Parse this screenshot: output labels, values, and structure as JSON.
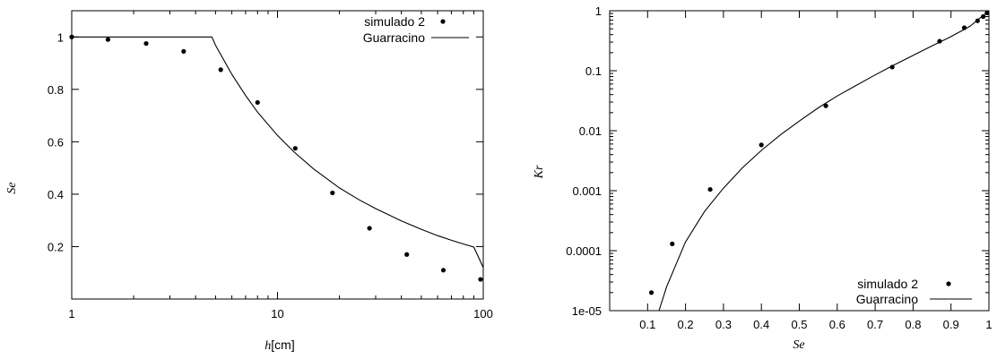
{
  "chart_data": [
    {
      "type": "scatter",
      "title": "",
      "xlabel_italic": "h",
      "xlabel_rest": "[cm]",
      "ylabel": "Se",
      "xscale": "log",
      "xlim": [
        1,
        100
      ],
      "ylim": [
        0,
        1.1
      ],
      "xticks": [
        1,
        10,
        100
      ],
      "xtick_labels": [
        "1",
        "10",
        "100"
      ],
      "yticks": [
        0.2,
        0.4,
        0.6,
        0.8,
        1
      ],
      "ytick_labels": [
        "0.2",
        "0.4",
        "0.6",
        "0.8",
        "1"
      ],
      "legend_position": "top-right",
      "series": [
        {
          "name": "simulado 2",
          "kind": "points",
          "x": [
            1.0,
            1.5,
            2.3,
            3.5,
            5.3,
            8.0,
            12.2,
            18.5,
            28,
            42.5,
            64,
            97
          ],
          "y": [
            1.0,
            0.99,
            0.975,
            0.945,
            0.875,
            0.75,
            0.575,
            0.405,
            0.27,
            0.17,
            0.11,
            0.075
          ]
        },
        {
          "name": "Guarracino",
          "kind": "line",
          "x": [
            1,
            2,
            3,
            4,
            4.8,
            5,
            6,
            7,
            8,
            10,
            12,
            15,
            20,
            25,
            30,
            40,
            50,
            60,
            70,
            80,
            90,
            100
          ],
          "y": [
            1,
            1,
            1,
            1,
            1,
            0.968,
            0.857,
            0.776,
            0.713,
            0.624,
            0.562,
            0.496,
            0.424,
            0.378,
            0.345,
            0.298,
            0.266,
            0.242,
            0.224,
            0.21,
            0.198,
            0.12
          ]
        }
      ]
    },
    {
      "type": "scatter",
      "title": "",
      "xlabel": "Se",
      "ylabel": "Kr",
      "yscale": "log",
      "xlim": [
        0,
        1
      ],
      "ylim": [
        1e-05,
        1
      ],
      "xticks": [
        0.1,
        0.2,
        0.3,
        0.4,
        0.5,
        0.6,
        0.7,
        0.8,
        0.9,
        1
      ],
      "xtick_labels": [
        "0.1",
        "0.2",
        "0.3",
        "0.4",
        "0.5",
        "0.6",
        "0.7",
        "0.8",
        "0.9",
        "1"
      ],
      "yticks": [
        1e-05,
        0.0001,
        0.001,
        0.01,
        0.1,
        1
      ],
      "ytick_labels": [
        "1e-05",
        "0.0001",
        "0.001",
        "0.01",
        "0.1",
        "1"
      ],
      "legend_position": "bottom-right",
      "series": [
        {
          "name": "simulado 2",
          "kind": "points",
          "x": [
            0.11,
            0.165,
            0.265,
            0.4,
            0.57,
            0.745,
            0.87,
            0.935,
            0.97,
            0.985,
            0.995
          ],
          "y": [
            2e-05,
            0.00013,
            0.00105,
            0.0058,
            0.026,
            0.115,
            0.31,
            0.52,
            0.68,
            0.8,
            0.92
          ]
        },
        {
          "name": "Guarracino",
          "kind": "line",
          "x": [
            0.13,
            0.15,
            0.2,
            0.25,
            0.3,
            0.35,
            0.4,
            0.45,
            0.5,
            0.55,
            0.6,
            0.65,
            0.7,
            0.75,
            0.8,
            0.85,
            0.9,
            0.95,
            1.0
          ],
          "y": [
            1e-05,
            2.5e-05,
            0.00014,
            0.00045,
            0.0011,
            0.0024,
            0.0047,
            0.0085,
            0.0145,
            0.024,
            0.038,
            0.057,
            0.085,
            0.125,
            0.18,
            0.26,
            0.37,
            0.55,
            1.0
          ]
        }
      ]
    }
  ]
}
